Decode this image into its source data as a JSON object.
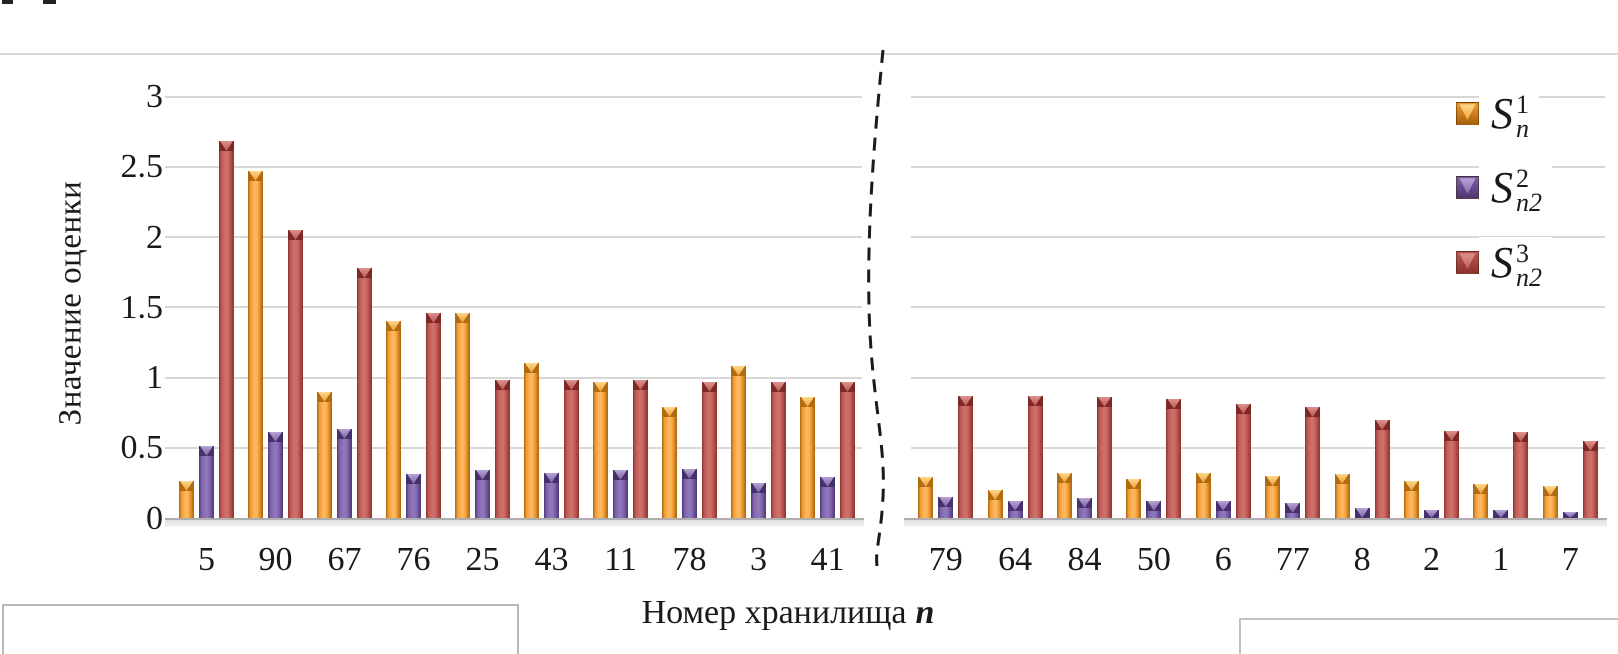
{
  "chart_data": {
    "type": "bar",
    "title": "",
    "ylabel": "Значение оценки",
    "xlabel_text": "Номер хранилища",
    "xlabel_var": "n",
    "ylim": [
      0,
      3
    ],
    "ytick_labels": [
      "0",
      "0.5",
      "1",
      "1.5",
      "2",
      "2.5",
      "3"
    ],
    "grid": true,
    "legend_position": "top-right",
    "axis_break_between_panels": true,
    "series": [
      {
        "label_base": "S",
        "label_sup": "1",
        "label_sub": "n"
      },
      {
        "label_base": "S",
        "label_sup": "2",
        "label_sub": "n2"
      },
      {
        "label_base": "S",
        "label_sup": "3",
        "label_sub": "n2"
      }
    ],
    "panels": [
      {
        "name": "left",
        "categories": [
          "5",
          "90",
          "67",
          "76",
          "25",
          "43",
          "11",
          "78",
          "3",
          "41"
        ],
        "values_by_series": [
          [
            0.26,
            2.47,
            0.9,
            1.4,
            1.46,
            1.1,
            0.97,
            0.79,
            1.08,
            0.86
          ],
          [
            0.51,
            0.61,
            0.63,
            0.31,
            0.34,
            0.32,
            0.34,
            0.35,
            0.25,
            0.29
          ],
          [
            2.68,
            2.05,
            1.78,
            1.46,
            0.98,
            0.98,
            0.98,
            0.97,
            0.97,
            0.97
          ]
        ]
      },
      {
        "name": "right",
        "categories": [
          "79",
          "64",
          "84",
          "50",
          "6",
          "77",
          "8",
          "2",
          "1",
          "7"
        ],
        "values_by_series": [
          [
            0.29,
            0.2,
            0.32,
            0.28,
            0.32,
            0.3,
            0.31,
            0.26,
            0.24,
            0.23
          ],
          [
            0.15,
            0.12,
            0.14,
            0.12,
            0.12,
            0.11,
            0.07,
            0.06,
            0.06,
            0.04
          ],
          [
            0.87,
            0.87,
            0.86,
            0.85,
            0.81,
            0.79,
            0.7,
            0.62,
            0.61,
            0.55
          ]
        ]
      }
    ]
  },
  "colors": {
    "background": "#ffffff",
    "text": "#1a1a1a",
    "grid": "#d7d7d7",
    "baseline": "#aeaeae",
    "frame": "#b9b9b9",
    "break_line": "#1b1b1b",
    "series": [
      {
        "name": "orange",
        "dark": "#a96208",
        "mid": "#ef9a33",
        "light": "#fdb65c",
        "cap_dark": "#b06a10",
        "cap_light": "#ffd98e"
      },
      {
        "name": "purple",
        "dark": "#4e3671",
        "mid": "#7b60a7",
        "light": "#8f76ba",
        "cap_dark": "#45306b",
        "cap_light": "#b7a4d4"
      },
      {
        "name": "red",
        "dark": "#8e312e",
        "mid": "#bd5854",
        "light": "#cd6e69",
        "cap_dark": "#7e2826",
        "cap_light": "#dc928e"
      }
    ]
  }
}
